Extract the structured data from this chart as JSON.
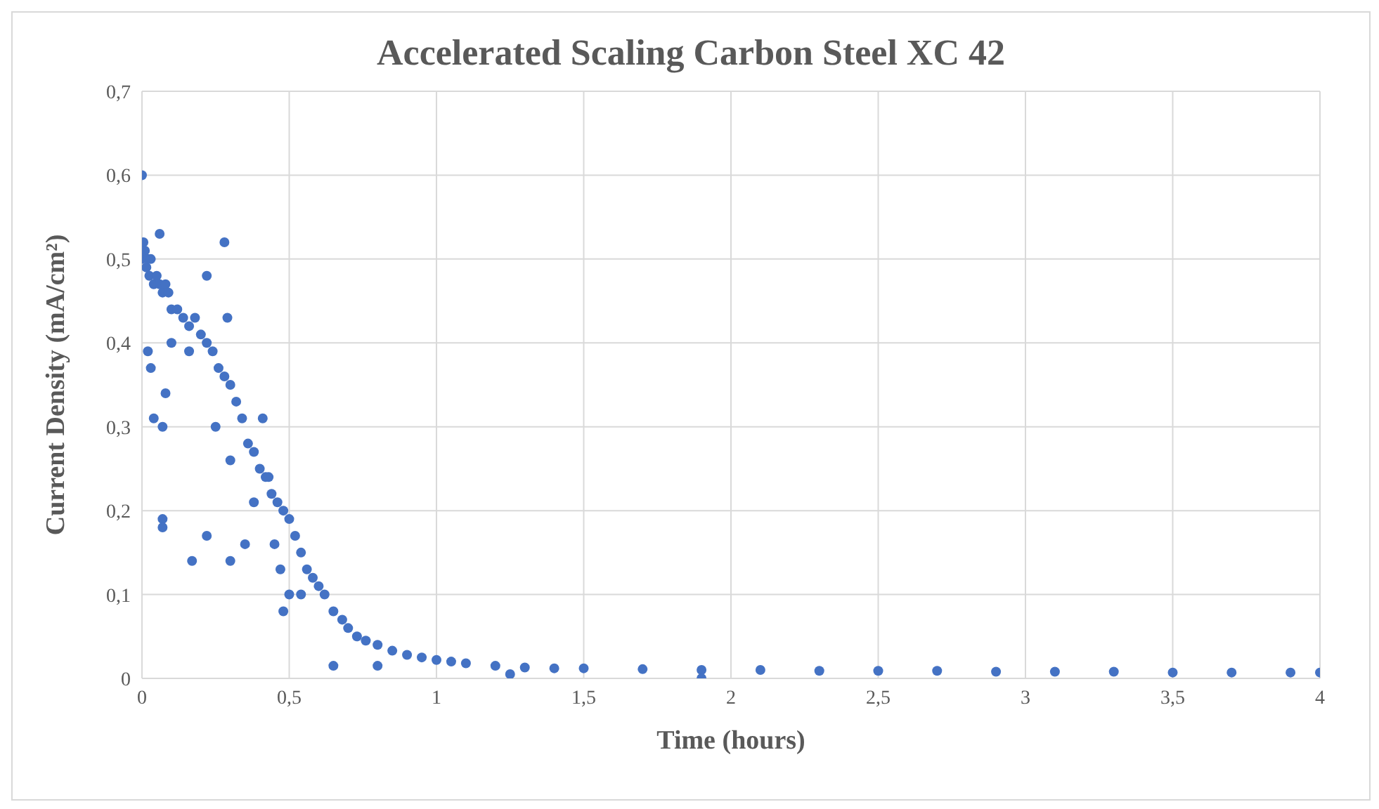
{
  "chart_data": {
    "type": "scatter",
    "title": "Accelerated Scaling Carbon Steel XC 42",
    "xlabel": "Time  (hours)",
    "ylabel": "Current  Density  (mA/cm²)",
    "x": [
      0,
      0.005,
      0.01,
      0.015,
      0.02,
      0.025,
      0.03,
      0.04,
      0.05,
      0.06,
      0.07,
      0.08,
      0.09,
      0.1,
      0.12,
      0.14,
      0.16,
      0.18,
      0.2,
      0.22,
      0.24,
      0.26,
      0.28,
      0.3,
      0.32,
      0.34,
      0.36,
      0.38,
      0.4,
      0.42,
      0.44,
      0.46,
      0.48,
      0.5,
      0.52,
      0.54,
      0.56,
      0.58,
      0.6,
      0.62,
      0.65,
      0.68,
      0.7,
      0.73,
      0.76,
      0.8,
      0.85,
      0.9,
      0.95,
      1,
      1.05,
      1.1,
      1.2,
      1.3,
      1.4,
      1.5,
      1.7,
      1.9,
      2.1,
      2.3,
      2.5,
      2.7,
      2.9,
      3.1,
      3.3,
      3.5,
      3.7,
      3.9,
      4,
      0,
      0.06,
      0.28,
      0.22,
      0.29,
      0.1,
      0.02,
      0.03,
      0.04,
      0.07,
      0.07,
      0.07,
      0.17,
      0.22,
      0.3,
      0.35,
      0.45,
      0.48,
      0.54,
      0.65,
      0.8,
      0.47,
      0.5,
      0.38,
      0.3,
      0.25,
      0.41,
      0.08,
      1.9,
      1.25,
      0.16,
      0.43
    ],
    "values": [
      0.5,
      0.52,
      0.51,
      0.49,
      0.5,
      0.48,
      0.5,
      0.47,
      0.48,
      0.47,
      0.46,
      0.47,
      0.46,
      0.44,
      0.44,
      0.43,
      0.42,
      0.43,
      0.41,
      0.4,
      0.39,
      0.37,
      0.36,
      0.35,
      0.33,
      0.31,
      0.28,
      0.27,
      0.25,
      0.24,
      0.22,
      0.21,
      0.2,
      0.19,
      0.17,
      0.15,
      0.13,
      0.12,
      0.11,
      0.1,
      0.08,
      0.07,
      0.06,
      0.05,
      0.045,
      0.04,
      0.033,
      0.028,
      0.025,
      0.022,
      0.02,
      0.018,
      0.015,
      0.013,
      0.012,
      0.012,
      0.011,
      0.01,
      0.01,
      0.009,
      0.009,
      0.009,
      0.008,
      0.008,
      0.008,
      0.007,
      0.007,
      0.007,
      0.007,
      0.6,
      0.53,
      0.52,
      0.48,
      0.43,
      0.4,
      0.39,
      0.37,
      0.31,
      0.3,
      0.19,
      0.18,
      0.14,
      0.17,
      0.14,
      0.16,
      0.16,
      0.08,
      0.1,
      0.015,
      0.015,
      0.13,
      0.1,
      0.21,
      0.26,
      0.3,
      0.31,
      0.34,
      0,
      0.005,
      0.39,
      0.24
    ],
    "color": "#4472c4",
    "marker": "circle",
    "grid": true,
    "legend": false,
    "xlim": [
      0,
      4
    ],
    "xticks": [
      {
        "value": 0,
        "label": "0"
      },
      {
        "value": 0.5,
        "label": "0,5"
      },
      {
        "value": 1,
        "label": "1"
      },
      {
        "value": 1.5,
        "label": "1,5"
      },
      {
        "value": 2,
        "label": "2"
      },
      {
        "value": 2.5,
        "label": "2,5"
      },
      {
        "value": 3,
        "label": "3"
      },
      {
        "value": 3.5,
        "label": "3,5"
      },
      {
        "value": 4,
        "label": "4"
      }
    ],
    "ylim": [
      0,
      0.7
    ],
    "yticks": [
      {
        "value": 0,
        "label": "0"
      },
      {
        "value": 0.1,
        "label": "0,1"
      },
      {
        "value": 0.2,
        "label": "0,2"
      },
      {
        "value": 0.3,
        "label": "0,3"
      },
      {
        "value": 0.4,
        "label": "0,4"
      },
      {
        "value": 0.5,
        "label": "0,5"
      },
      {
        "value": 0.6,
        "label": "0,6"
      },
      {
        "value": 0.7,
        "label": "0,7"
      }
    ]
  }
}
